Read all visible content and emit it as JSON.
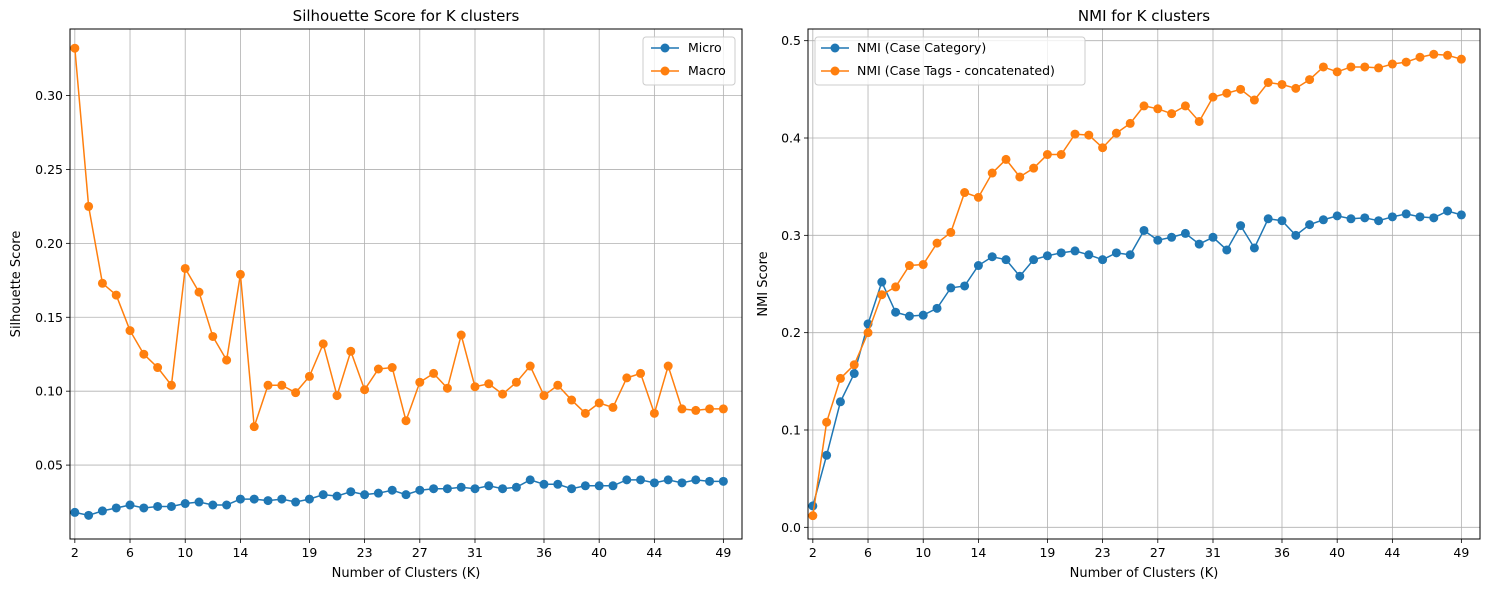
{
  "colors": {
    "blue": "#1f77b4",
    "orange": "#ff7f0e",
    "grid": "#b0b0b0"
  },
  "chart_data": [
    {
      "type": "line",
      "title": "Silhouette Score for K clusters",
      "xlabel": "Number of Clusters (K)",
      "ylabel": "Silhouette Score",
      "grid": true,
      "legend_position": "upper right",
      "marker": "circle",
      "xlim": [
        1.65,
        50.35
      ],
      "ylim": [
        0.0,
        0.345
      ],
      "xticks": [
        2,
        6,
        10,
        14,
        19,
        23,
        27,
        31,
        36,
        40,
        44,
        49
      ],
      "yticks": [
        0.05,
        0.1,
        0.15,
        0.2,
        0.25,
        0.3
      ],
      "ytick_labels": [
        "0.05",
        "0.10",
        "0.15",
        "0.20",
        "0.25",
        "0.30"
      ],
      "x": [
        2,
        3,
        4,
        5,
        6,
        7,
        8,
        9,
        10,
        11,
        12,
        13,
        14,
        15,
        16,
        17,
        18,
        19,
        20,
        21,
        22,
        23,
        24,
        25,
        26,
        27,
        28,
        29,
        30,
        31,
        32,
        33,
        34,
        35,
        36,
        37,
        38,
        39,
        40,
        41,
        42,
        43,
        44,
        45,
        46,
        47,
        48,
        49
      ],
      "series": [
        {
          "name": "Micro",
          "color": "#1f77b4",
          "values": [
            0.018,
            0.016,
            0.019,
            0.021,
            0.023,
            0.021,
            0.022,
            0.022,
            0.024,
            0.025,
            0.023,
            0.023,
            0.027,
            0.027,
            0.026,
            0.027,
            0.025,
            0.027,
            0.03,
            0.029,
            0.032,
            0.03,
            0.031,
            0.033,
            0.03,
            0.033,
            0.034,
            0.034,
            0.035,
            0.034,
            0.036,
            0.034,
            0.035,
            0.04,
            0.037,
            0.037,
            0.034,
            0.036,
            0.036,
            0.036,
            0.04,
            0.04,
            0.038,
            0.04,
            0.038,
            0.04,
            0.039,
            0.039
          ]
        },
        {
          "name": "Macro",
          "color": "#ff7f0e",
          "values": [
            0.332,
            0.225,
            0.173,
            0.165,
            0.141,
            0.125,
            0.116,
            0.104,
            0.183,
            0.167,
            0.137,
            0.121,
            0.179,
            0.076,
            0.104,
            0.104,
            0.099,
            0.11,
            0.132,
            0.097,
            0.127,
            0.101,
            0.115,
            0.116,
            0.08,
            0.106,
            0.112,
            0.102,
            0.138,
            0.103,
            0.105,
            0.098,
            0.106,
            0.117,
            0.097,
            0.104,
            0.094,
            0.085,
            0.092,
            0.089,
            0.109,
            0.112,
            0.085,
            0.117,
            0.088,
            0.087,
            0.088,
            0.088
          ]
        }
      ]
    },
    {
      "type": "line",
      "title": "NMI for K clusters",
      "xlabel": "Number of Clusters (K)",
      "ylabel": "NMI Score",
      "grid": true,
      "legend_position": "upper left",
      "marker": "circle",
      "xlim": [
        1.65,
        50.35
      ],
      "ylim": [
        -0.012,
        0.512
      ],
      "xticks": [
        2,
        6,
        10,
        14,
        19,
        23,
        27,
        31,
        36,
        40,
        44,
        49
      ],
      "yticks": [
        0.0,
        0.1,
        0.2,
        0.3,
        0.4,
        0.5
      ],
      "ytick_labels": [
        "0.0",
        "0.1",
        "0.2",
        "0.3",
        "0.4",
        "0.5"
      ],
      "x": [
        2,
        3,
        4,
        5,
        6,
        7,
        8,
        9,
        10,
        11,
        12,
        13,
        14,
        15,
        16,
        17,
        18,
        19,
        20,
        21,
        22,
        23,
        24,
        25,
        26,
        27,
        28,
        29,
        30,
        31,
        32,
        33,
        34,
        35,
        36,
        37,
        38,
        39,
        40,
        41,
        42,
        43,
        44,
        45,
        46,
        47,
        48,
        49
      ],
      "series": [
        {
          "name": "NMI (Case Category)",
          "color": "#1f77b4",
          "values": [
            0.022,
            0.074,
            0.129,
            0.158,
            0.209,
            0.252,
            0.221,
            0.217,
            0.218,
            0.225,
            0.246,
            0.248,
            0.269,
            0.278,
            0.275,
            0.258,
            0.275,
            0.279,
            0.282,
            0.284,
            0.28,
            0.275,
            0.282,
            0.28,
            0.305,
            0.295,
            0.298,
            0.302,
            0.291,
            0.298,
            0.285,
            0.31,
            0.287,
            0.317,
            0.315,
            0.3,
            0.311,
            0.316,
            0.32,
            0.317,
            0.318,
            0.315,
            0.319,
            0.322,
            0.319,
            0.318,
            0.325,
            0.321
          ]
        },
        {
          "name": "NMI (Case Tags - concatenated)",
          "color": "#ff7f0e",
          "values": [
            0.012,
            0.108,
            0.153,
            0.167,
            0.2,
            0.239,
            0.247,
            0.269,
            0.27,
            0.292,
            0.303,
            0.344,
            0.339,
            0.364,
            0.378,
            0.36,
            0.369,
            0.383,
            0.383,
            0.404,
            0.403,
            0.39,
            0.405,
            0.415,
            0.433,
            0.43,
            0.425,
            0.433,
            0.417,
            0.442,
            0.446,
            0.45,
            0.439,
            0.457,
            0.455,
            0.451,
            0.46,
            0.473,
            0.468,
            0.473,
            0.473,
            0.472,
            0.476,
            0.478,
            0.483,
            0.486,
            0.485,
            0.481
          ]
        }
      ]
    }
  ]
}
